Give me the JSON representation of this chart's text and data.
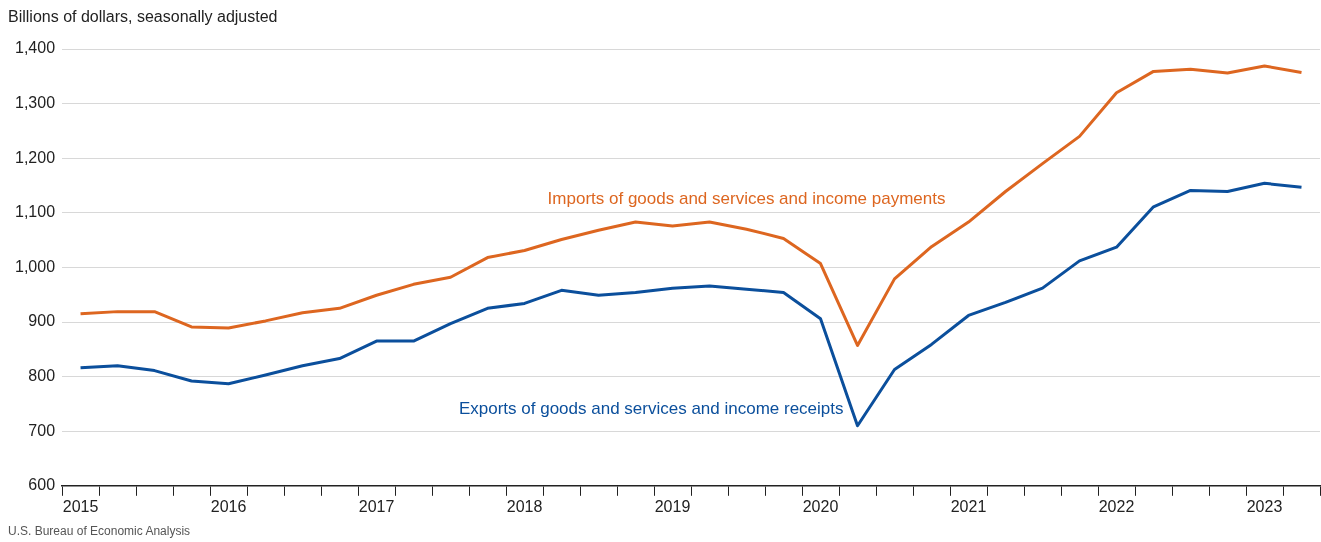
{
  "chart_data": {
    "type": "line",
    "ylabel": "Billions of dollars, seasonally adjusted",
    "categories": [
      "2015",
      null,
      null,
      null,
      "2016",
      null,
      null,
      null,
      "2017",
      null,
      null,
      null,
      "2018",
      null,
      null,
      null,
      "2019",
      null,
      null,
      null,
      "2020",
      null,
      null,
      null,
      "2021",
      null,
      null,
      null,
      "2022",
      null,
      null,
      null,
      "2023",
      null
    ],
    "series": [
      {
        "name": "Imports of goods and services and income payments",
        "color": "#dd6620",
        "values": [
          915,
          919,
          919,
          891,
          889,
          902,
          917,
          925,
          949,
          969,
          982,
          1018,
          1031,
          1051,
          1068,
          1083,
          1076,
          1083,
          1070,
          1053,
          1007,
          857,
          979,
          1038,
          1083,
          1139,
          1190,
          1240,
          1320,
          1359,
          1363,
          1356,
          1369,
          1357
        ]
      },
      {
        "name": "Exports of goods and services and income receipts",
        "color": "#0b4f9c",
        "values": [
          816,
          820,
          811,
          792,
          787,
          803,
          820,
          833,
          865,
          865,
          897,
          925,
          934,
          958,
          949,
          954,
          962,
          966,
          960,
          954,
          906,
          710,
          813,
          859,
          912,
          936,
          962,
          1012,
          1037,
          1111,
          1141,
          1139,
          1154,
          1147
        ]
      }
    ],
    "ylim": [
      600,
      1400
    ],
    "yticks": [
      {
        "value": 600,
        "label": "600"
      },
      {
        "value": 700,
        "label": "700"
      },
      {
        "value": 800,
        "label": "800"
      },
      {
        "value": 900,
        "label": "900"
      },
      {
        "value": 1000,
        "label": "1,000"
      },
      {
        "value": 1100,
        "label": "1,100"
      },
      {
        "value": 1200,
        "label": "1,200"
      },
      {
        "value": 1300,
        "label": "1,300"
      },
      {
        "value": 1400,
        "label": "1,400"
      }
    ],
    "grid": "y",
    "legend": false,
    "marker": "none",
    "line_style": "solid",
    "annotations": [
      "U.S. Bureau of Economic Analysis"
    ]
  }
}
